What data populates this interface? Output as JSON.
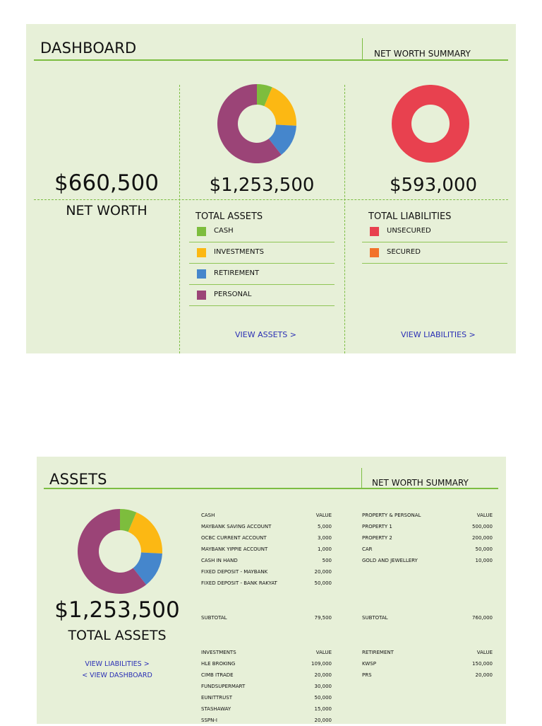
{
  "colors": {
    "panel_bg": "#e7f0d8",
    "accent": "#7cbd42",
    "cash": "#7dbd3d",
    "investments": "#fcb813",
    "retirement": "#4586cc",
    "personal": "#9b4477",
    "unsecured": "#e8414f",
    "secured": "#f2722a",
    "link": "#2a2fb5"
  },
  "dashboard": {
    "title": "DASHBOARD",
    "subtitle": "NET WORTH SUMMARY",
    "net_worth_value": "$660,500",
    "net_worth_label": "NET WORTH",
    "assets_total": "$1,253,500",
    "assets_title": "TOTAL ASSETS",
    "assets_legend": [
      {
        "label": "CASH",
        "color": "#7dbd3d"
      },
      {
        "label": "INVESTMENTS",
        "color": "#fcb813"
      },
      {
        "label": "RETIREMENT",
        "color": "#4586cc"
      },
      {
        "label": "PERSONAL",
        "color": "#9b4477"
      }
    ],
    "view_assets": "VIEW ASSETS >",
    "liabilities_total": "$593,000",
    "liabilities_title": "TOTAL LIABILITIES",
    "liabilities_legend": [
      {
        "label": "UNSECURED",
        "color": "#e8414f"
      },
      {
        "label": "SECURED",
        "color": "#f2722a"
      }
    ],
    "view_liabilities": "VIEW LIABILITIES >"
  },
  "chart_data": [
    {
      "type": "pie",
      "categories": [
        "CASH",
        "INVESTMENTS",
        "RETIREMENT",
        "PERSONAL"
      ],
      "values": [
        79500,
        244000,
        170000,
        760000
      ]
    },
    {
      "type": "pie",
      "categories": [
        "UNSECURED",
        "SECURED"
      ],
      "values": [
        593000,
        0
      ]
    }
  ],
  "assets": {
    "title": "ASSETS",
    "subtitle": "NET WORTH SUMMARY",
    "total": "$1,253,500",
    "total_label": "TOTAL ASSETS",
    "view_liabilities": "VIEW LIABILITIES >",
    "view_dashboard": "< VIEW DASHBOARD",
    "cash": {
      "header": "CASH",
      "value_header": "VALUE",
      "rows": [
        {
          "name": "MAYBANK SAVING ACCOUNT",
          "value": "5,000"
        },
        {
          "name": "OCBC CURRENT ACCOUNT",
          "value": "3,000"
        },
        {
          "name": "MAYBANK YIPPIE ACCOUNT",
          "value": "1,000"
        },
        {
          "name": "CASH IN HAND",
          "value": "500"
        },
        {
          "name": "FIXED DEPOSIT - MAYBANK",
          "value": "20,000"
        },
        {
          "name": "FIXED DEPOSIT - BANK RAKYAT",
          "value": "50,000"
        }
      ],
      "subtotal_label": "SUBTOTAL",
      "subtotal": "79,500"
    },
    "property": {
      "header": "PROPERTY & PERSONAL",
      "value_header": "VALUE",
      "rows": [
        {
          "name": "PROPERTY 1",
          "value": "500,000"
        },
        {
          "name": "PROPERTY 2",
          "value": "200,000"
        },
        {
          "name": "CAR",
          "value": "50,000"
        },
        {
          "name": "GOLD AND JEWELLERY",
          "value": "10,000"
        }
      ],
      "subtotal_label": "SUBTOTAL",
      "subtotal": "760,000"
    },
    "investments": {
      "header": "INVESTMENTS",
      "value_header": "VALUE",
      "rows": [
        {
          "name": "HLE BROKING",
          "value": "109,000"
        },
        {
          "name": "CIMB ITRADE",
          "value": "20,000"
        },
        {
          "name": "FUNDSUPERMART",
          "value": "30,000"
        },
        {
          "name": "EUNITTRUST",
          "value": "50,000"
        },
        {
          "name": "STASHAWAY",
          "value": "15,000"
        },
        {
          "name": "SSPN-I",
          "value": "20,000"
        }
      ]
    },
    "retirement": {
      "header": "RETIREMENT",
      "value_header": "VALUE",
      "rows": [
        {
          "name": "KWSP",
          "value": "150,000"
        },
        {
          "name": "PRS",
          "value": "20,000"
        }
      ]
    }
  }
}
